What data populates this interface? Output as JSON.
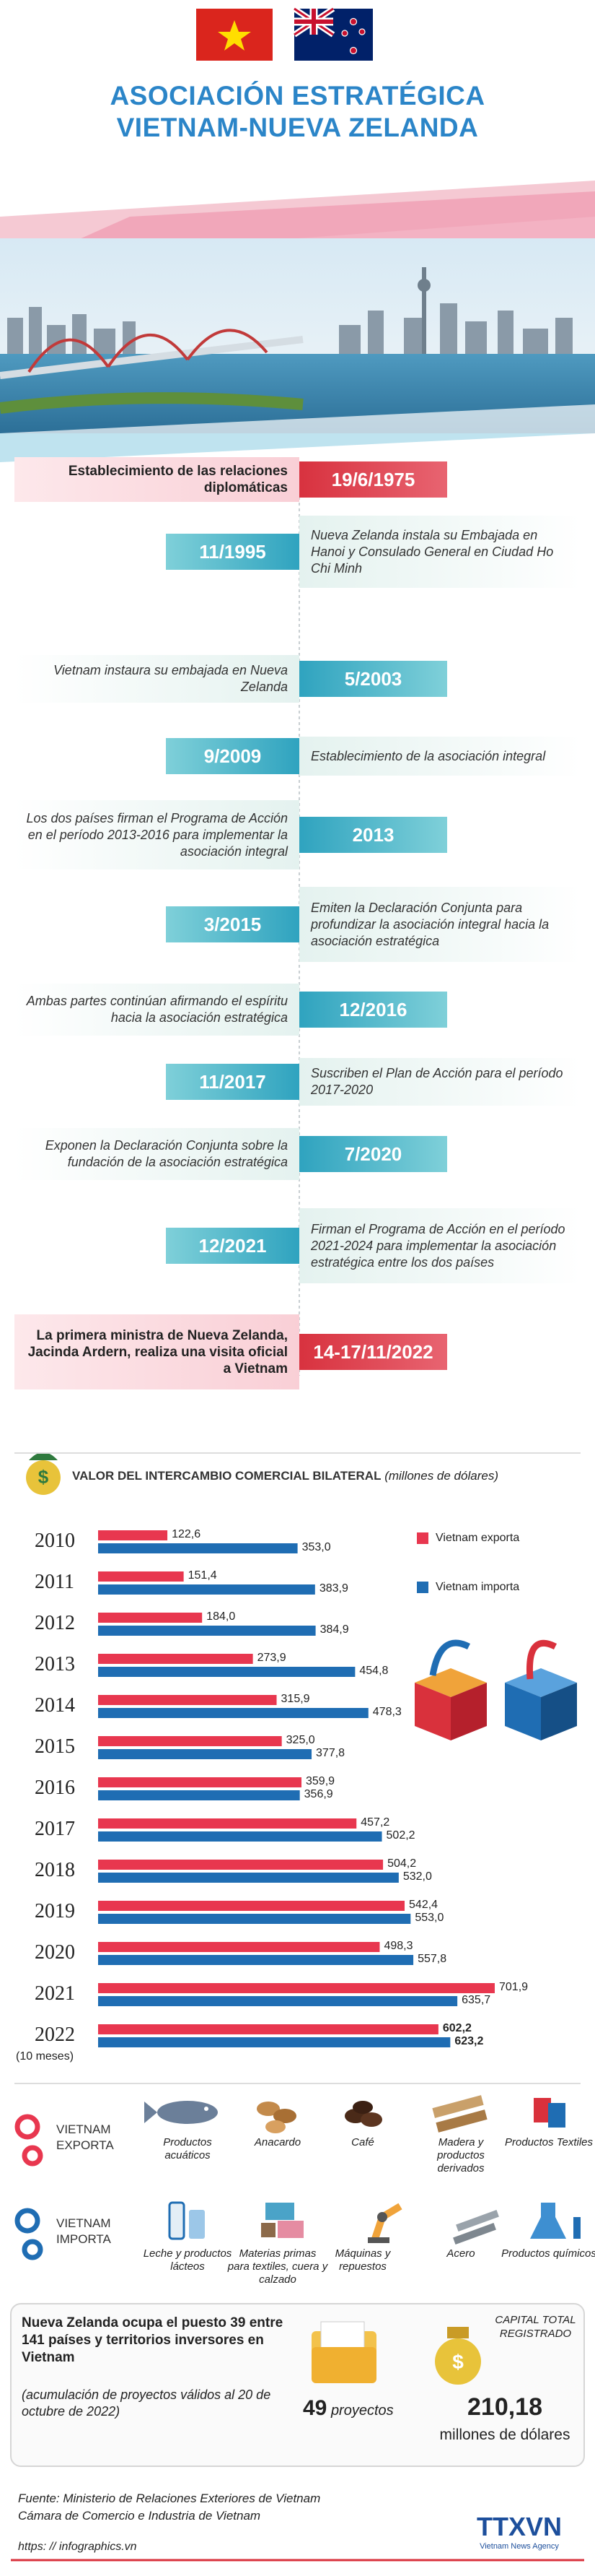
{
  "header": {
    "title_lines": [
      "ASOCIACIÓN ESTRATÉGICA",
      "VIETNAM-NUEVA ZELANDA"
    ]
  },
  "timeline": [
    {
      "date": "19/6/1975",
      "text": "Establecimiento de las relaciones diplomáticas"
    },
    {
      "date": "11/1995",
      "text": "Nueva Zelanda instala su Embajada en Hanoi y Consulado General en Ciudad Ho Chi Minh"
    },
    {
      "date": "5/2003",
      "text": "Vietnam instaura su embajada en Nueva Zelanda"
    },
    {
      "date": "9/2009",
      "text": "Establecimiento de la asociación integral"
    },
    {
      "date": "2013",
      "text": "Los dos países firman el Programa de Acción en el período 2013-2016 para implementar la asociación integral"
    },
    {
      "date": "3/2015",
      "text": "Emiten la Declaración Conjunta para profundizar la asociación integral hacia la asociación estratégica"
    },
    {
      "date": "12/2016",
      "text": "Ambas partes continúan afirmando el espíritu hacia la asociación estratégica"
    },
    {
      "date": "11/2017",
      "text": "Suscriben el Plan de Acción para el período 2017-2020"
    },
    {
      "date": "7/2020",
      "text": "Exponen la Declaración Conjunta sobre la fundación de la asociación estratégica"
    },
    {
      "date": "12/2021",
      "text": "Firman el Programa de Acción en el período 2021-2024 para implementar la asociación estratégica entre los dos países"
    },
    {
      "date": "14-17/11/2022",
      "text": "La primera ministra de Nueva Zelanda, Jacinda Ardern, realiza una visita oficial a Vietnam"
    }
  ],
  "chart_data": {
    "type": "bar",
    "orientation": "horizontal",
    "title": "VALOR DEL INTERCAMBIO COMERCIAL BILATERAL",
    "subtitle": "(millones de dólares)",
    "categories": [
      "2010",
      "2011",
      "2012",
      "2013",
      "2014",
      "2015",
      "2016",
      "2017",
      "2018",
      "2019",
      "2020",
      "2021",
      "2022"
    ],
    "category_note": "(10 meses)",
    "series": [
      {
        "name": "Vietnam exporta",
        "color": "#e8374f",
        "values": [
          122.6,
          151.4,
          184.0,
          273.9,
          315.9,
          325.0,
          359.9,
          457.2,
          504.2,
          542.4,
          498.3,
          701.9,
          602.2
        ],
        "value_labels": [
          "122,6",
          "151,4",
          "184,0",
          "273,9",
          "315,9",
          "325,0",
          "359,9",
          "457,2",
          "504,2",
          "542,4",
          "498,3",
          "701,9",
          "602,2"
        ]
      },
      {
        "name": "Vietnam importa",
        "color": "#1f6db3",
        "values": [
          353.0,
          383.9,
          384.9,
          454.8,
          478.3,
          377.8,
          356.9,
          502.2,
          532.0,
          553.0,
          557.8,
          635.7,
          623.2
        ],
        "value_labels": [
          "353,0",
          "383,9",
          "384,9",
          "454,8",
          "478,3",
          "377,8",
          "356,9",
          "502,2",
          "532,0",
          "553,0",
          "557,8",
          "635,7",
          "623,2"
        ]
      }
    ]
  },
  "exports": {
    "label": "VIETNAM EXPORTA",
    "items": [
      "Productos acuáticos",
      "Anacardo",
      "Café",
      "Madera y productos derivados",
      "Productos Textiles"
    ]
  },
  "imports": {
    "label": "VIETNAM IMPORTA",
    "items": [
      "Leche y productos lácteos",
      "Materias primas para textiles, cuera y calzado",
      "Máquinas y repuestos",
      "Acero",
      "Productos químicos"
    ]
  },
  "investment": {
    "text": "Nueva Zelanda ocupa el puesto 39 entre 141 países y territorios inversores en Vietnam",
    "note": "(acumulación de proyectos válidos al 20 de octubre de 2022)",
    "projects_value": 49,
    "projects_label": "proyectos",
    "capital_label": "CAPITAL TOTAL REGISTRADO",
    "capital_value": "210,18",
    "capital_unit": "millones de dólares"
  },
  "footer": {
    "source_lines": [
      "Fuente: Ministerio de Relaciones Exteriores de Vietnam",
      "Cámara de Comercio e Industria de Vietnam"
    ],
    "url": "https: // infographics.vn",
    "logo": "TTXVN",
    "logo_sub": "Vietnam News Agency"
  }
}
